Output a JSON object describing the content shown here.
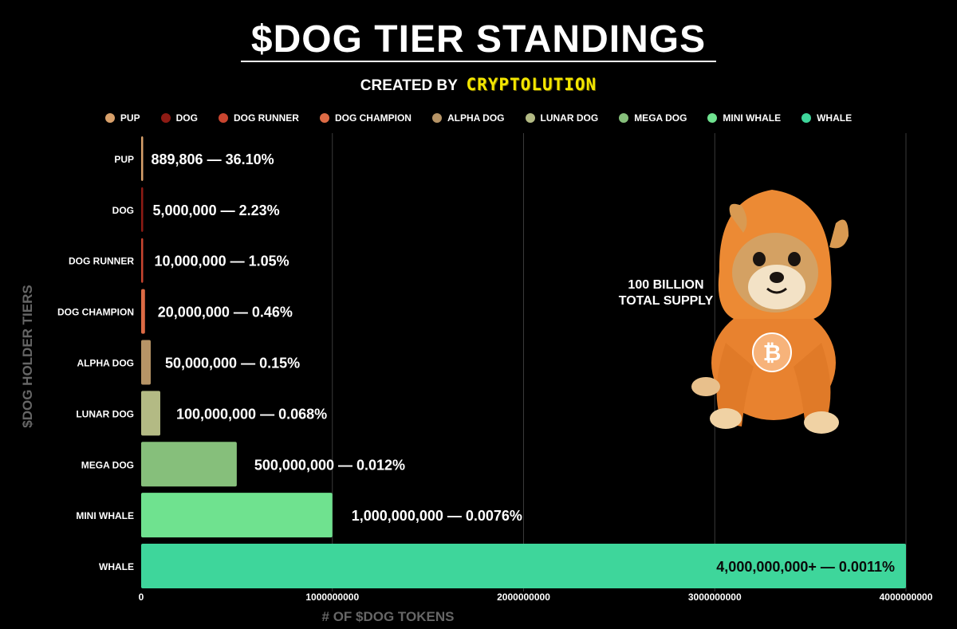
{
  "title": "$DOG TIER STANDINGS",
  "subtitle_prefix": "CREATED BY",
  "subtitle_brand": "CRYPTOLUTION",
  "annotation": {
    "line1": "100 BILLION",
    "line2": "TOTAL SUPPLY"
  },
  "colors": {
    "background": "#000000",
    "brand": "#f3e600",
    "gridline": "#3a3a3a",
    "axis_title": "#666666"
  },
  "chart_data": {
    "type": "bar",
    "orientation": "horizontal",
    "xlabel": "# OF $DOG TOKENS",
    "ylabel": "$DOG HOLDER TIERS",
    "xlim": [
      0,
      4000000000
    ],
    "x_ticks": [
      0,
      1000000000,
      2000000000,
      3000000000,
      4000000000
    ],
    "x_tick_labels": [
      "0",
      "1000000000",
      "2000000000",
      "3000000000",
      "4000000000"
    ],
    "grid": true,
    "legend_position": "top",
    "categories": [
      "PUP",
      "DOG",
      "DOG RUNNER",
      "DOG CHAMPION",
      "ALPHA DOG",
      "LUNAR DOG",
      "MEGA DOG",
      "MINI WHALE",
      "WHALE"
    ],
    "values": [
      889806,
      5000000,
      10000000,
      20000000,
      50000000,
      100000000,
      500000000,
      1000000000,
      4000000000
    ],
    "bar_colors": [
      "#d9a16b",
      "#8e1b14",
      "#c9452f",
      "#dd6b45",
      "#b69466",
      "#b3ba84",
      "#86bf7b",
      "#6fe28f",
      "#3ed69b"
    ],
    "data_labels": [
      "889,806 — 36.10%",
      "5,000,000 — 2.23%",
      "10,000,000 — 1.05%",
      "20,000,000 —  0.46%",
      "50,000,000 — 0.15%",
      "100,000,000 — 0.068%",
      "500,000,000 — 0.012%",
      "1,000,000,000 — 0.0076%",
      "4,000,000,000+ — 0.0011%"
    ]
  }
}
